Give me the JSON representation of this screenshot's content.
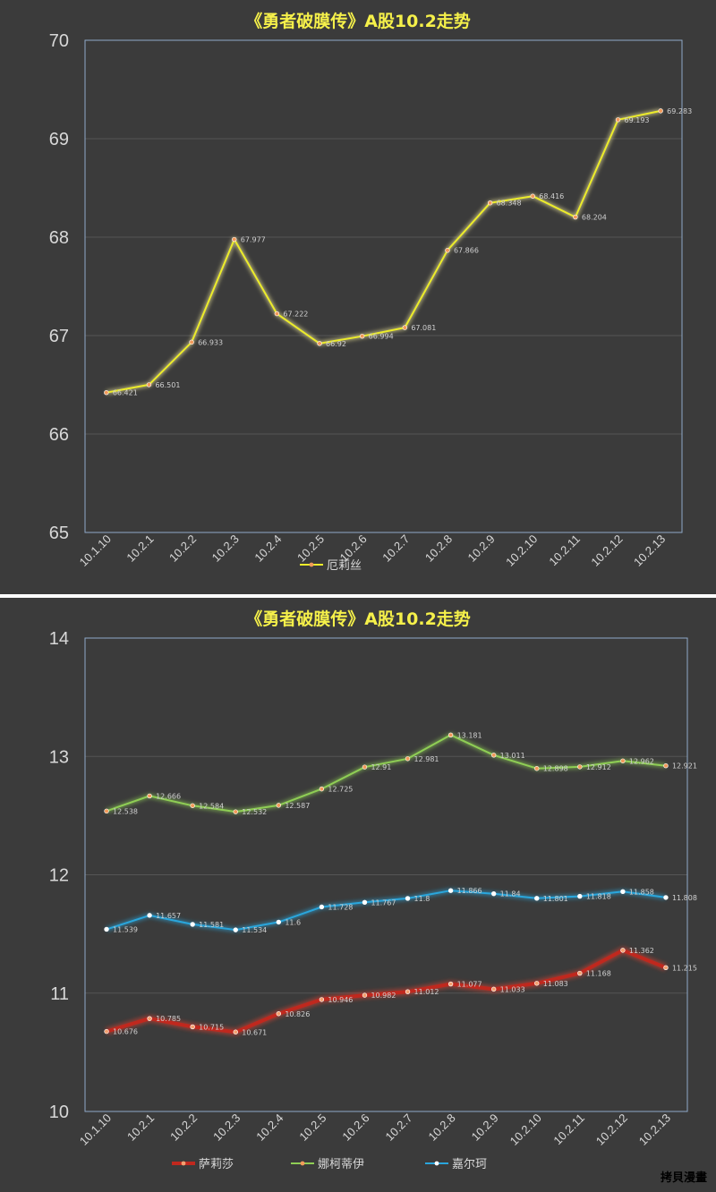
{
  "chart_data": [
    {
      "type": "line",
      "title": "《勇者破膜传》A股10.2走势",
      "categories": [
        "10.1.10",
        "10.2.1",
        "10.2.2",
        "10.2.3",
        "10.2.4",
        "10.2.5",
        "10.2.6",
        "10.2.7",
        "10.2.8",
        "10.2.9",
        "10.2.10",
        "10.2.11",
        "10.2.12",
        "10.2.13"
      ],
      "ylim": [
        65,
        70
      ],
      "yticks": [
        65,
        66,
        67,
        68,
        69,
        70
      ],
      "grid": true,
      "legend_position": "bottom",
      "series": [
        {
          "name": "厄莉丝",
          "color": "#ecec2a",
          "glow": "#fff6a0",
          "marker": "#f29a5a",
          "values": [
            66.421,
            66.501,
            66.933,
            67.977,
            67.222,
            66.92,
            66.994,
            67.081,
            67.866,
            68.348,
            68.416,
            68.204,
            69.193,
            69.283
          ]
        }
      ]
    },
    {
      "type": "line",
      "title": "《勇者破膜传》A股10.2走势",
      "categories": [
        "10.1.10",
        "10.2.1",
        "10.2.2",
        "10.2.3",
        "10.2.4",
        "10.2.5",
        "10.2.6",
        "10.2.7",
        "10.2.8",
        "10.2.9",
        "10.2.10",
        "10.2.11",
        "10.2.12",
        "10.2.13"
      ],
      "ylim": [
        10,
        14
      ],
      "yticks": [
        10,
        11,
        12,
        13,
        14
      ],
      "grid": true,
      "legend_position": "bottom",
      "series": [
        {
          "name": "萨莉莎",
          "color": "#c0281e",
          "glow": "#d84030",
          "marker": "#f3a070",
          "values": [
            10.676,
            10.785,
            10.715,
            10.671,
            10.826,
            10.946,
            10.982,
            11.012,
            11.077,
            11.033,
            11.083,
            11.168,
            11.362,
            11.215
          ]
        },
        {
          "name": "娜柯蒂伊",
          "color": "#8fce55",
          "glow": "#8fce55",
          "marker": "#f29a5a",
          "values": [
            12.538,
            12.666,
            12.584,
            12.532,
            12.587,
            12.725,
            12.91,
            12.981,
            13.181,
            13.011,
            12.898,
            12.912,
            12.962,
            12.921
          ]
        },
        {
          "name": "嘉尔珂",
          "color": "#2aa6dc",
          "glow": "#2aa6dc",
          "marker": "#ffffff",
          "values": [
            11.539,
            11.657,
            11.581,
            11.534,
            11.6,
            11.728,
            11.767,
            11.8,
            11.866,
            11.84,
            11.801,
            11.818,
            11.858,
            11.808
          ]
        }
      ]
    }
  ],
  "watermark": "拷貝漫畫"
}
